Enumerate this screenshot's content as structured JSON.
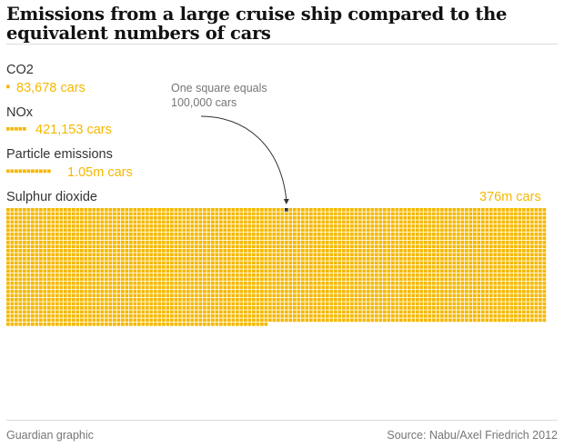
{
  "header": {
    "title": "Emissions from a large cruise ship compared to the equivalent numbers of cars"
  },
  "colors": {
    "accent": "#f5b800",
    "marker": "#333333",
    "muted": "#767676"
  },
  "annotation": {
    "text": "One square equals 100,000 cars"
  },
  "footer": {
    "credit": "Guardian graphic",
    "source": "Source: Nabu/Axel Friedrich 2012"
  },
  "chart_data": {
    "type": "waffle",
    "unit": "One square equals 100,000 cars",
    "square_value": 100000,
    "series": [
      {
        "name": "CO2",
        "label": "83,678 cars",
        "value": 83678
      },
      {
        "name": "NOx",
        "label": "421,153 cars",
        "value": 421153
      },
      {
        "name": "Particle emissions",
        "label": "1.05m cars",
        "value": 1050000
      },
      {
        "name": "Sulphur dioxide",
        "label": "376m cars",
        "value": 376000000
      }
    ]
  }
}
